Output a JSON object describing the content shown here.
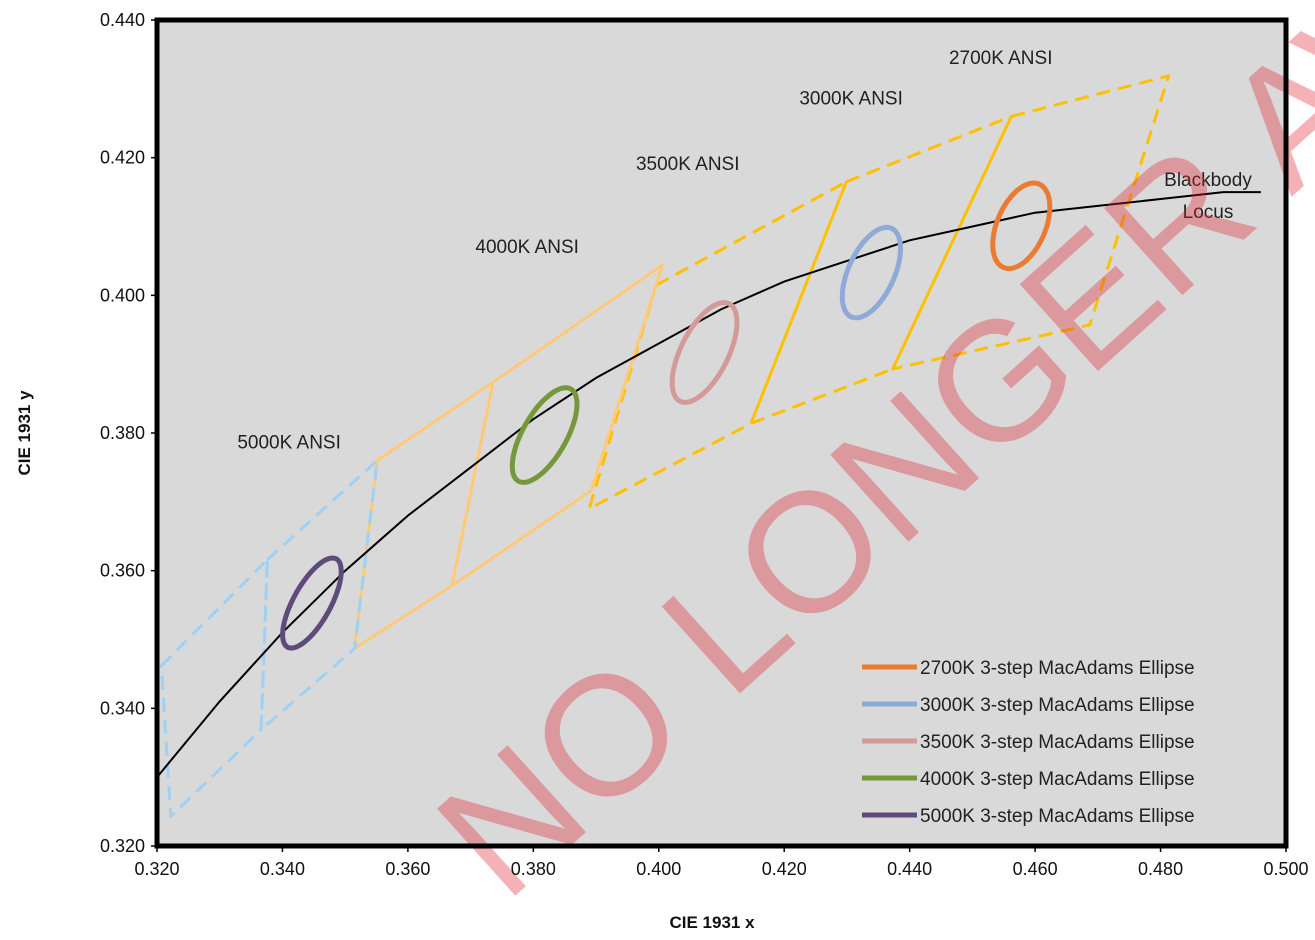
{
  "chart_data": {
    "type": "scatter",
    "title": "",
    "xlabel": "CIE 1931 x",
    "ylabel": "CIE 1931 y",
    "xlim": [
      0.32,
      0.5
    ],
    "ylim": [
      0.32,
      0.44
    ],
    "xticks": [
      "0.320",
      "0.340",
      "0.360",
      "0.380",
      "0.400",
      "0.420",
      "0.440",
      "0.460",
      "0.480",
      "0.500"
    ],
    "yticks": [
      "0.320",
      "0.340",
      "0.360",
      "0.380",
      "0.400",
      "0.420",
      "0.440"
    ],
    "grid": false,
    "legend_position": "bottom-right",
    "locus": {
      "label_line1": "Blackbody",
      "label_line2": "Locus",
      "color": "#000000",
      "points": [
        [
          0.32,
          0.33
        ],
        [
          0.33,
          0.341
        ],
        [
          0.34,
          0.351
        ],
        [
          0.35,
          0.36
        ],
        [
          0.36,
          0.368
        ],
        [
          0.37,
          0.375
        ],
        [
          0.38,
          0.382
        ],
        [
          0.39,
          0.388
        ],
        [
          0.4,
          0.393
        ],
        [
          0.41,
          0.398
        ],
        [
          0.42,
          0.402
        ],
        [
          0.43,
          0.405
        ],
        [
          0.44,
          0.408
        ],
        [
          0.45,
          0.41
        ],
        [
          0.46,
          0.412
        ],
        [
          0.47,
          0.413
        ],
        [
          0.48,
          0.414
        ],
        [
          0.49,
          0.415
        ],
        [
          0.496,
          0.415
        ]
      ]
    },
    "quadrangles": [
      {
        "label": "2700K ANSI",
        "color": "#ffc000",
        "dashed": true,
        "points": [
          [
            0.4562,
            0.426
          ],
          [
            0.4813,
            0.4319
          ],
          [
            0.4687,
            0.3957
          ],
          [
            0.4373,
            0.3893
          ]
        ]
      },
      {
        "label": "3000K ANSI",
        "color": "#ffc000",
        "dashed": true,
        "points": [
          [
            0.4299,
            0.4165
          ],
          [
            0.4562,
            0.426
          ],
          [
            0.4373,
            0.3893
          ],
          [
            0.4147,
            0.3814
          ]
        ]
      },
      {
        "label": "3500K ANSI",
        "color": "#ffc000",
        "dashed": true,
        "points": [
          [
            0.3996,
            0.4015
          ],
          [
            0.4299,
            0.4165
          ],
          [
            0.4147,
            0.3814
          ],
          [
            0.3889,
            0.369
          ]
        ]
      },
      {
        "label": "4000K ANSI",
        "color": "#ffc978",
        "dashed": false,
        "points": [
          [
            0.3736,
            0.3874
          ],
          [
            0.4006,
            0.4044
          ],
          [
            0.3892,
            0.3716
          ],
          [
            0.367,
            0.3578
          ]
        ]
      },
      {
        "label": "",
        "color": "#ffc978",
        "dashed": false,
        "points": [
          [
            0.3551,
            0.376
          ],
          [
            0.3736,
            0.3874
          ],
          [
            0.367,
            0.3578
          ],
          [
            0.3515,
            0.3487
          ]
        ]
      },
      {
        "label": "5000K ANSI",
        "color": "#9fd1f5",
        "dashed": true,
        "points": [
          [
            0.3376,
            0.3616
          ],
          [
            0.3551,
            0.376
          ],
          [
            0.3515,
            0.3487
          ],
          [
            0.3366,
            0.3369
          ]
        ]
      },
      {
        "label": "",
        "color": "#9fd1f5",
        "dashed": true,
        "points": [
          [
            0.3207,
            0.3462
          ],
          [
            0.3376,
            0.3616
          ],
          [
            0.3366,
            0.3369
          ],
          [
            0.3222,
            0.3243
          ]
        ]
      }
    ],
    "series": [
      {
        "name": "2700K 3-step MacAdams Ellipse",
        "color": "#e97c30",
        "center": [
          0.4578,
          0.4101
        ],
        "a": 0.0067,
        "b": 0.0038,
        "angle_deg": 63
      },
      {
        "name": "3000K 3-step MacAdams Ellipse",
        "color": "#8eaad8",
        "center": [
          0.4339,
          0.4033
        ],
        "a": 0.0072,
        "b": 0.0036,
        "angle_deg": 62
      },
      {
        "name": "3500K 3-step MacAdams Ellipse",
        "color": "#d49a9a",
        "center": [
          0.4073,
          0.3917
        ],
        "a": 0.0081,
        "b": 0.0037,
        "angle_deg": 60
      },
      {
        "name": "4000K 3-step MacAdams Ellipse",
        "color": "#77983a",
        "center": [
          0.3818,
          0.3797
        ],
        "a": 0.0079,
        "b": 0.0034,
        "angle_deg": 57
      },
      {
        "name": "5000K 3-step MacAdams Ellipse",
        "color": "#5f4a7b",
        "center": [
          0.3447,
          0.3553
        ],
        "a": 0.0075,
        "b": 0.0029,
        "angle_deg": 58
      }
    ]
  },
  "watermark": {
    "text": "NO LONGER AVAILABLE",
    "color": "#e0212e"
  }
}
